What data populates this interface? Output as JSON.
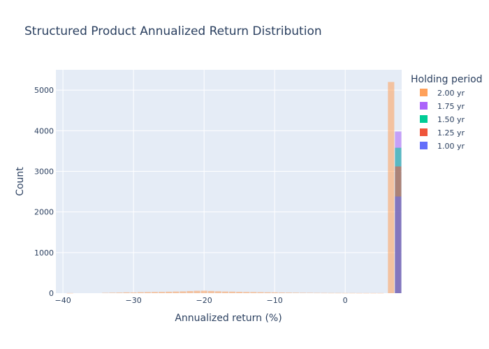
{
  "chart_data": {
    "type": "bar",
    "title": "Structured Product Annualized Return Distribution",
    "xlabel": "Annualized return (%)",
    "ylabel": "Count",
    "xlim": [
      -41,
      8
    ],
    "ylim": [
      0,
      5500
    ],
    "xticks": [
      -40,
      -30,
      -20,
      -10,
      0
    ],
    "yticks": [
      0,
      1000,
      2000,
      3000,
      4000,
      5000
    ],
    "bar_width": 0.9,
    "grid": true,
    "legend_placement": "right",
    "legend_title": "Holding period",
    "series": [
      {
        "name": "2.00 yr",
        "color": "#FFA15A",
        "x": [
          -39,
          -34,
          -33,
          -32,
          -31,
          -30,
          -29,
          -28,
          -27,
          -26,
          -25,
          -24,
          -23,
          -22,
          -21,
          -20,
          -19,
          -18,
          -17,
          -16,
          -15,
          -14,
          -13,
          -12,
          -11,
          -10,
          -9,
          -8,
          -7,
          -6,
          -5,
          -4,
          -3,
          -2,
          -1,
          0,
          1,
          2,
          3,
          4,
          5,
          6.5
        ],
        "values": [
          3,
          8,
          12,
          15,
          20,
          18,
          24,
          27,
          30,
          32,
          36,
          40,
          44,
          52,
          58,
          60,
          54,
          46,
          40,
          38,
          34,
          30,
          28,
          25,
          22,
          20,
          16,
          14,
          12,
          10,
          9,
          7,
          6,
          5,
          5,
          4,
          4,
          3,
          3,
          3,
          3,
          5200
        ]
      },
      {
        "name": "1.75 yr",
        "color": "#AB63FA",
        "x": [
          7.5
        ],
        "values": [
          3980
        ]
      },
      {
        "name": "1.50 yr",
        "color": "#00CC96",
        "x": [
          7.5
        ],
        "values": [
          3580
        ]
      },
      {
        "name": "1.25 yr",
        "color": "#EF553B",
        "x": [
          7.5
        ],
        "values": [
          3120
        ]
      },
      {
        "name": "1.00 yr",
        "color": "#636EFA",
        "x": [
          7.5
        ],
        "values": [
          2380
        ]
      }
    ]
  },
  "colors": {
    "plot_bg": "#E5ECF6",
    "grid": "#ffffff",
    "text": "#2a3f5f"
  }
}
